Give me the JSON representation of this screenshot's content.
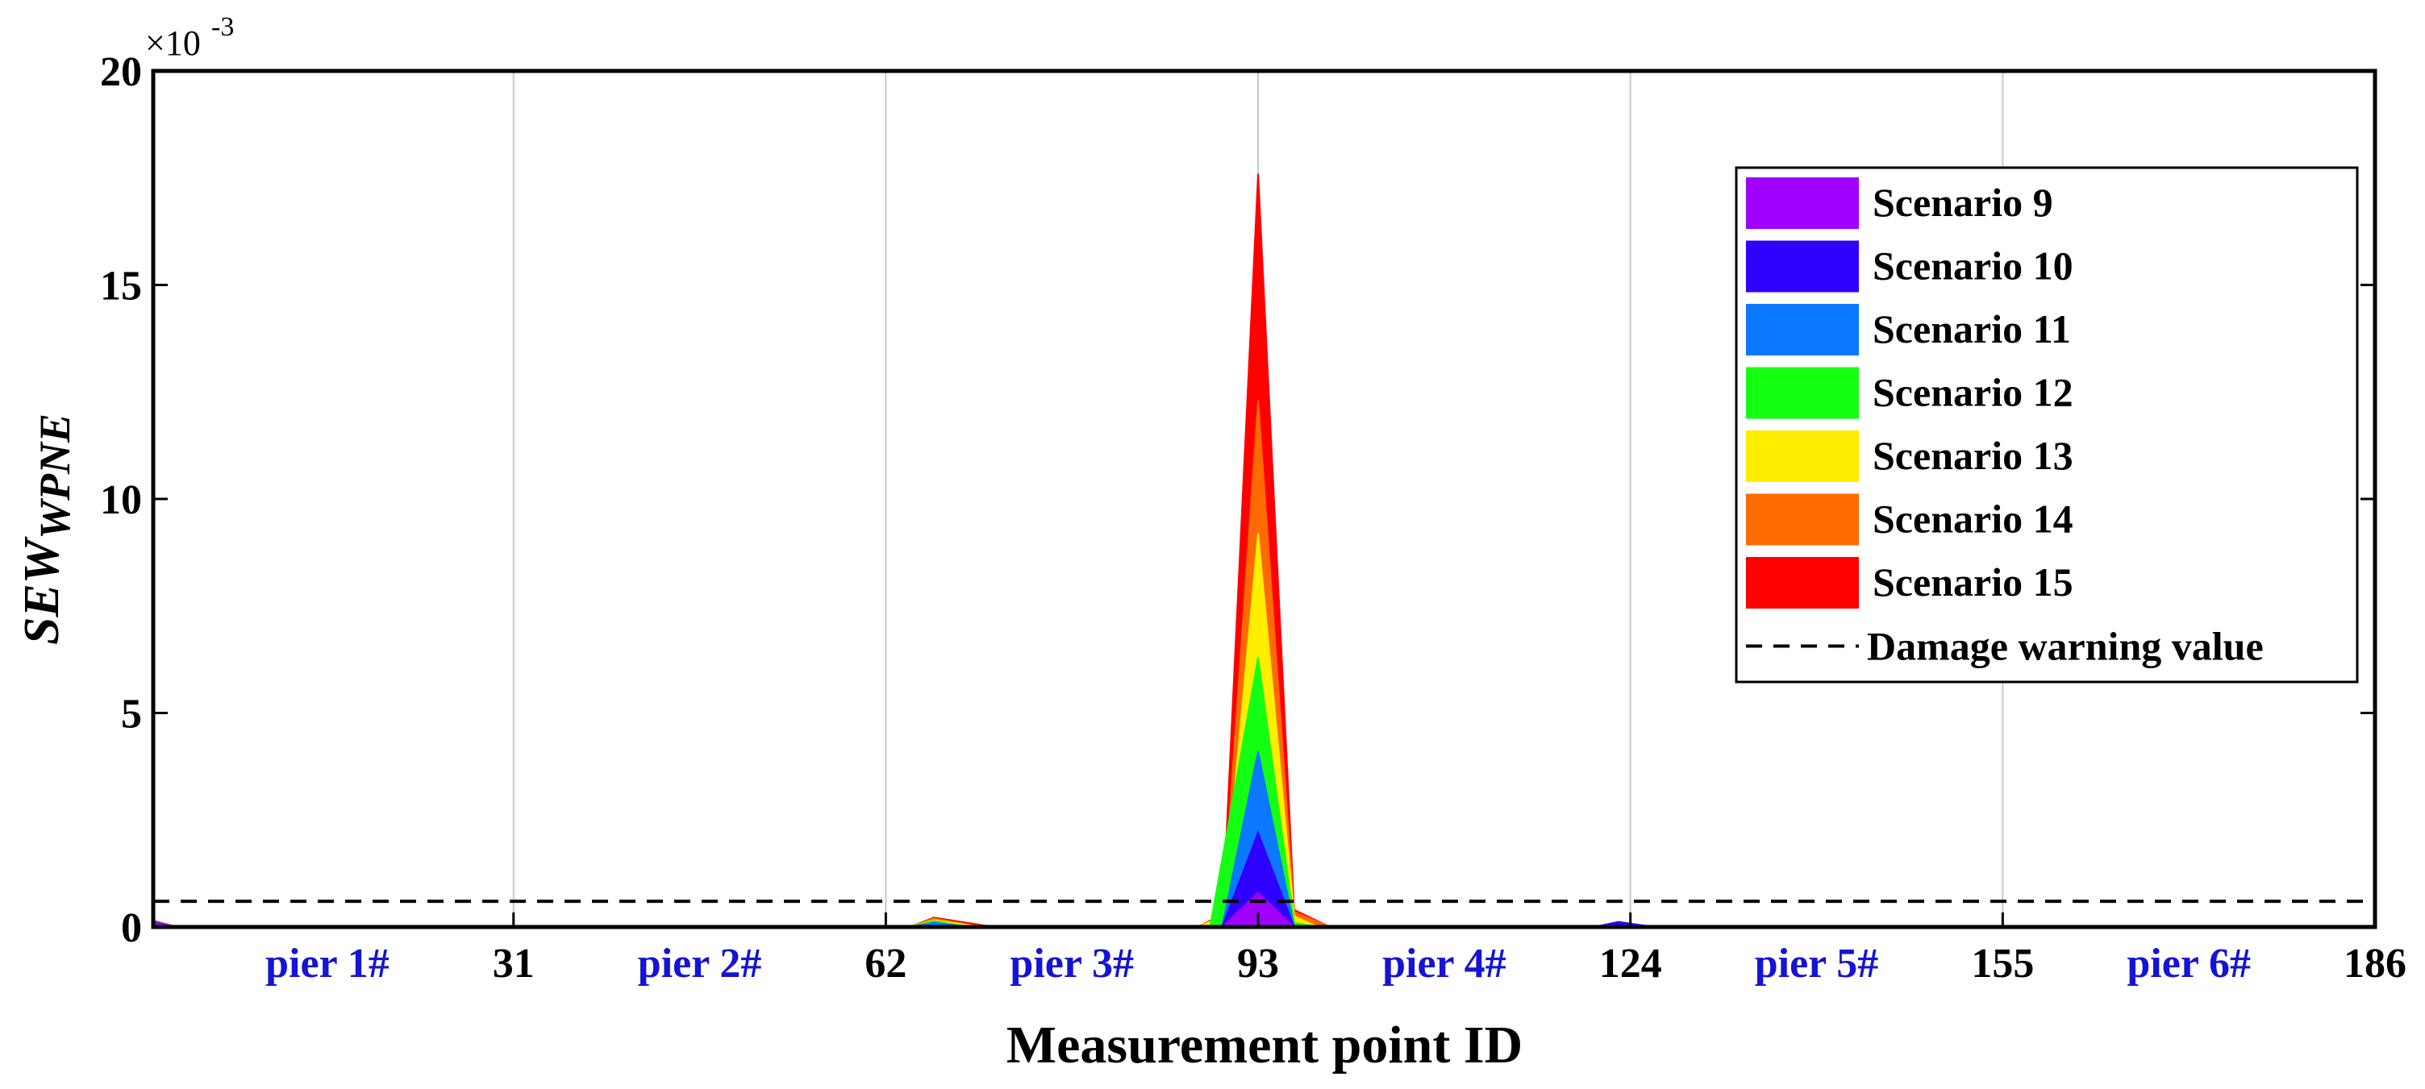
{
  "chart_data": {
    "type": "area",
    "title": "",
    "xlabel": "Measurement point ID",
    "ylabel_main": "SEW",
    "ylabel_sub": "WPNE",
    "y_multiplier": "×10",
    "y_multiplier_exp": "-3",
    "xlim": [
      1,
      186
    ],
    "ylim": [
      0,
      20
    ],
    "grid": "vertical",
    "legend_position": "upper-right",
    "x_ticks": [
      {
        "value": 31,
        "label": "31"
      },
      {
        "value": 62,
        "label": "62"
      },
      {
        "value": 93,
        "label": "93"
      },
      {
        "value": 124,
        "label": "124"
      },
      {
        "value": 155,
        "label": "155"
      },
      {
        "value": 186,
        "label": "186"
      }
    ],
    "y_ticks": [
      {
        "value": 0,
        "label": "0"
      },
      {
        "value": 5,
        "label": "5"
      },
      {
        "value": 10,
        "label": "10"
      },
      {
        "value": 15,
        "label": "15"
      },
      {
        "value": 20,
        "label": "20"
      }
    ],
    "pier_labels": [
      {
        "x": 15.5,
        "label": "pier 1#"
      },
      {
        "x": 46.5,
        "label": "pier 2#"
      },
      {
        "x": 77.5,
        "label": "pier 3#"
      },
      {
        "x": 108.5,
        "label": "pier 4#"
      },
      {
        "x": 139.5,
        "label": "pier 5#"
      },
      {
        "x": 170.5,
        "label": "pier 6#"
      }
    ],
    "warning_value": 0.6,
    "warning_label": "Damage warning value",
    "series": [
      {
        "name": "Scenario 9",
        "color": "#a000ff",
        "points": [
          [
            1,
            0.1
          ],
          [
            3,
            0.0
          ],
          [
            90,
            0.0
          ],
          [
            93,
            0.8
          ],
          [
            96,
            0.0
          ],
          [
            186,
            0.0
          ]
        ]
      },
      {
        "name": "Scenario 10",
        "color": "#3000ff",
        "points": [
          [
            1,
            0.12
          ],
          [
            3,
            0.0
          ],
          [
            90,
            0.0
          ],
          [
            93,
            2.2
          ],
          [
            96,
            0.0
          ],
          [
            121,
            0.0
          ],
          [
            123,
            0.12
          ],
          [
            126,
            0.0
          ],
          [
            186,
            0.0
          ]
        ]
      },
      {
        "name": "Scenario 11",
        "color": "#0a78ff",
        "points": [
          [
            1,
            0.12
          ],
          [
            3,
            0.0
          ],
          [
            64,
            0.0
          ],
          [
            66,
            0.1
          ],
          [
            69,
            0.0
          ],
          [
            90,
            0.0
          ],
          [
            93,
            4.1
          ],
          [
            96,
            0.0
          ],
          [
            186,
            0.0
          ]
        ]
      },
      {
        "name": "Scenario 12",
        "color": "#14ff14",
        "points": [
          [
            1,
            0.13
          ],
          [
            3,
            0.0
          ],
          [
            64,
            0.0
          ],
          [
            66,
            0.14
          ],
          [
            69,
            0.0
          ],
          [
            89,
            0.0
          ],
          [
            93,
            6.3
          ],
          [
            96,
            0.1
          ],
          [
            98,
            0.0
          ],
          [
            186,
            0.0
          ]
        ]
      },
      {
        "name": "Scenario 13",
        "color": "#ffee00",
        "points": [
          [
            1,
            0.13
          ],
          [
            3,
            0.0
          ],
          [
            64,
            0.0
          ],
          [
            66,
            0.16
          ],
          [
            70,
            0.0
          ],
          [
            88,
            0.0
          ],
          [
            89,
            0.12
          ],
          [
            90,
            0.0
          ],
          [
            93,
            9.2
          ],
          [
            96,
            0.25
          ],
          [
            98,
            0.0
          ],
          [
            186,
            0.0
          ]
        ]
      },
      {
        "name": "Scenario 14",
        "color": "#ff6a00",
        "points": [
          [
            1,
            0.14
          ],
          [
            3,
            0.0
          ],
          [
            64,
            0.0
          ],
          [
            66,
            0.2
          ],
          [
            70,
            0.0
          ],
          [
            88,
            0.0
          ],
          [
            89,
            0.14
          ],
          [
            90,
            0.0
          ],
          [
            93,
            12.3
          ],
          [
            96,
            0.35
          ],
          [
            99,
            0.0
          ],
          [
            186,
            0.0
          ]
        ]
      },
      {
        "name": "Scenario 15",
        "color": "#ff0000",
        "points": [
          [
            1,
            0.15
          ],
          [
            3,
            0.0
          ],
          [
            30,
            0.0
          ],
          [
            31,
            0.03
          ],
          [
            32,
            0.0
          ],
          [
            64,
            0.0
          ],
          [
            66,
            0.22
          ],
          [
            71,
            0.0
          ],
          [
            88,
            0.0
          ],
          [
            89,
            0.15
          ],
          [
            90,
            0.0
          ],
          [
            93,
            17.6
          ],
          [
            96,
            0.4
          ],
          [
            99,
            0.0
          ],
          [
            186,
            0.0
          ]
        ]
      }
    ]
  }
}
